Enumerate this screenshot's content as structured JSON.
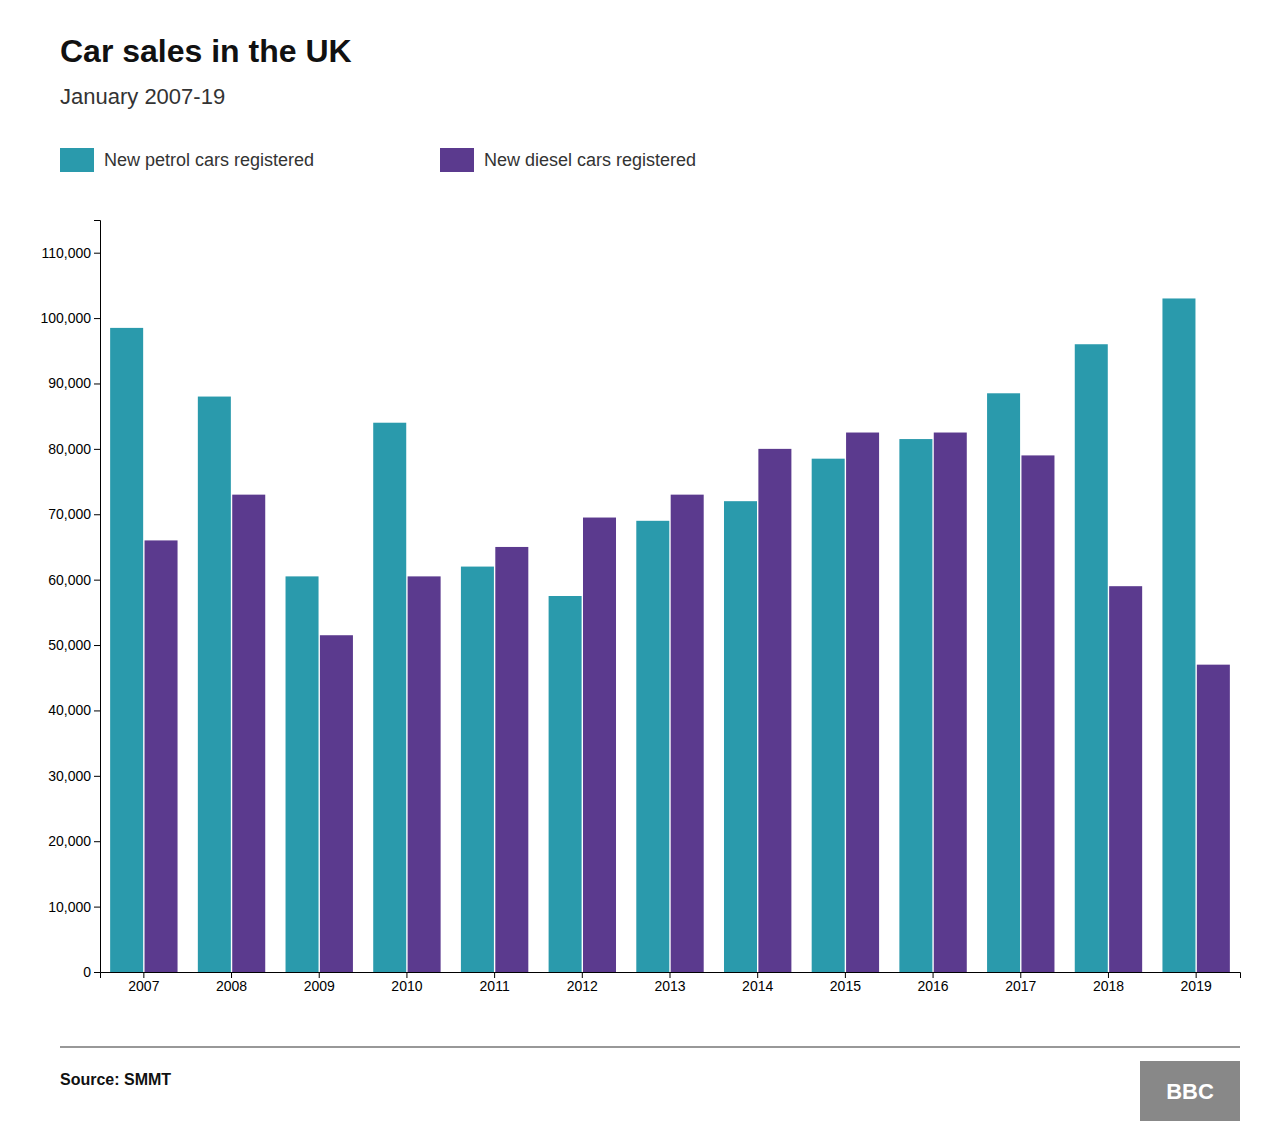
{
  "chart_data": {
    "type": "bar",
    "title": "Car sales in the UK",
    "subtitle": "January 2007-19",
    "categories": [
      "2007",
      "2008",
      "2009",
      "2010",
      "2011",
      "2012",
      "2013",
      "2014",
      "2015",
      "2016",
      "2017",
      "2018",
      "2019"
    ],
    "series": [
      {
        "name": "New petrol cars registered",
        "color": "#2a9aac",
        "values": [
          98500,
          88000,
          60500,
          84000,
          62000,
          57500,
          69000,
          72000,
          78500,
          81500,
          88500,
          96000,
          103000
        ]
      },
      {
        "name": "New diesel cars registered",
        "color": "#5b3a8e",
        "values": [
          66000,
          73000,
          51500,
          60500,
          65000,
          69500,
          73000,
          80000,
          82500,
          82500,
          79000,
          59000,
          47000
        ]
      }
    ],
    "ylim": [
      0,
      115000
    ],
    "yticks": [
      0,
      {
        "value": 10000,
        "label": "10,000"
      },
      {
        "value": 20000,
        "label": "20,000"
      },
      {
        "value": 30000,
        "label": "30,000"
      },
      {
        "value": 40000,
        "label": "40,000"
      },
      {
        "value": 50000,
        "label": "50,000"
      },
      {
        "value": 60000,
        "label": "60,000"
      },
      {
        "value": 70000,
        "label": "70,000"
      },
      {
        "value": 80000,
        "label": "80,000"
      },
      {
        "value": 90000,
        "label": "90,000"
      },
      {
        "value": 100000,
        "label": "100,000"
      },
      {
        "value": 110000,
        "label": "110,000"
      }
    ],
    "grid": false,
    "legend": "top-left",
    "annotations": [
      "Source: SMMT",
      "BBC"
    ]
  }
}
